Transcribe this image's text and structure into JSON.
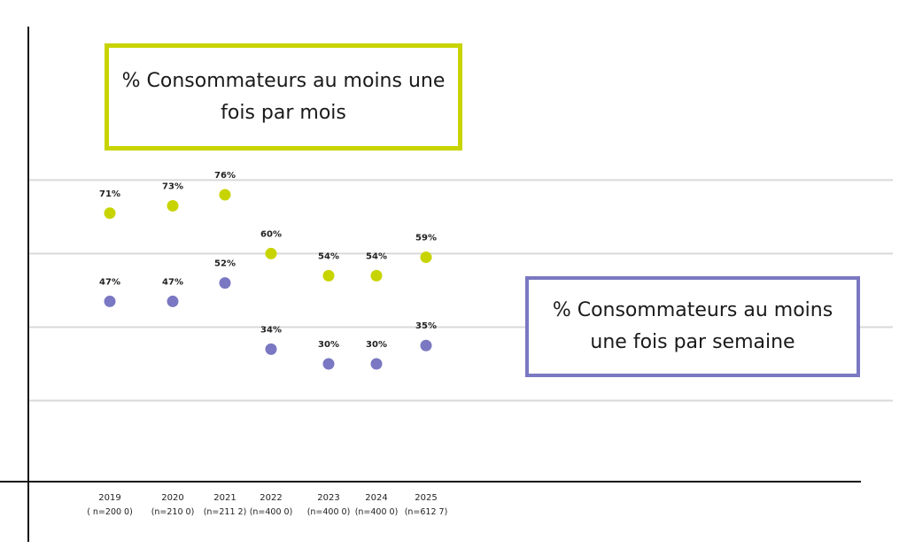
{
  "chart_data": {
    "type": "scatter",
    "categories": [
      "2019",
      "2020",
      "2021",
      "2022",
      "2023",
      "2024",
      "2025"
    ],
    "category_sublabels": [
      "( n=200 0)",
      "(n=210 0)",
      "(n=211 2)",
      "(n=400 0)",
      "(n=400 0)",
      "(n=400 0)",
      "(n=612 7)"
    ],
    "series": [
      {
        "name": "% Consommateurs au moins une fois par mois",
        "values": [
          71,
          73,
          76,
          60,
          54,
          54,
          59
        ],
        "labels": [
          "71%",
          "73%",
          "76%",
          "60%",
          "54%",
          "54%",
          "59%"
        ],
        "color": "#c8d400"
      },
      {
        "name": "% Consommateurs au moins une fois par semaine",
        "values": [
          47,
          47,
          52,
          34,
          30,
          30,
          35
        ],
        "labels": [
          "47%",
          "47%",
          "52%",
          "34%",
          "30%",
          "30%",
          "35%"
        ],
        "color": "#7a78c2"
      }
    ],
    "grid": true,
    "ylim": [
      0,
      100
    ],
    "legend": {
      "monthly": {
        "line1": "% Consommateurs au moins une",
        "line2": "fois par mois"
      },
      "weekly": {
        "line1": "% Consommateurs au moins",
        "line2": "une fois par semaine"
      }
    }
  }
}
